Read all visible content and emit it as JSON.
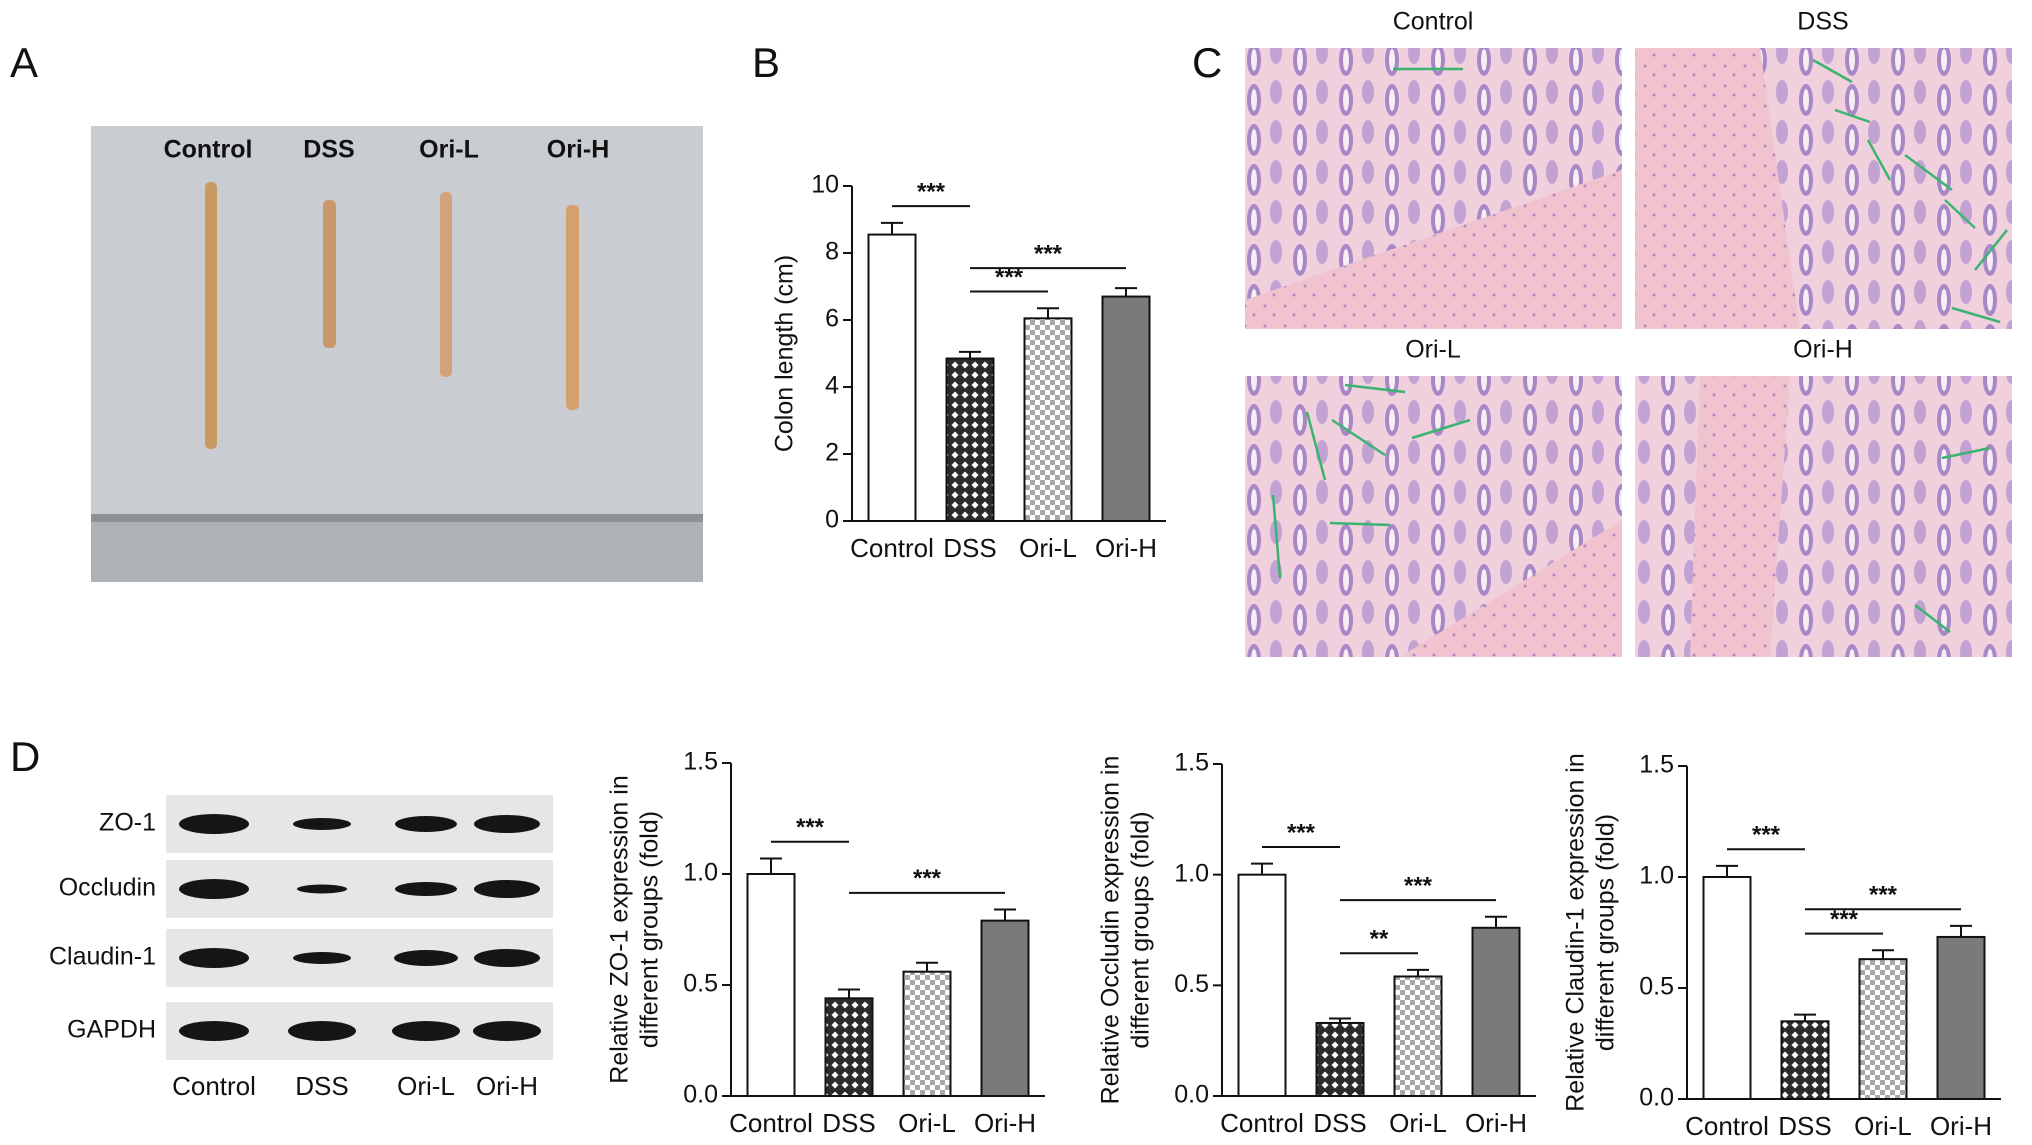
{
  "panels": {
    "A": {
      "label": "A",
      "groups": [
        "Control",
        "DSS",
        "Ori-L",
        "Ori-H"
      ]
    },
    "C": {
      "label": "C",
      "images": [
        "Control",
        "DSS",
        "Ori-L",
        "Ori-H"
      ]
    },
    "D": {
      "label": "D",
      "bands": [
        "ZO-1",
        "Occludin",
        "Claudin-1",
        "GAPDH"
      ],
      "lanes": [
        "Control",
        "DSS",
        "Ori-L",
        "Ori-H"
      ]
    }
  },
  "chart_data": [
    {
      "type": "bar",
      "panel": "B",
      "ylabel": [
        "Colon length (cm)"
      ],
      "categories": [
        "Control",
        "DSS",
        "Ori-L",
        "Ori-H"
      ],
      "values": [
        8.55,
        4.85,
        6.05,
        6.7
      ],
      "errors": [
        0.35,
        0.2,
        0.3,
        0.25
      ],
      "colors": [
        "#ffffff",
        "#2b2b2b",
        "#8a8a8a",
        "#7a7a7a"
      ],
      "patterns": [
        "none",
        "crosshatch",
        "dots",
        "none"
      ],
      "ylim": [
        0,
        10
      ],
      "yticks": [
        0,
        2,
        4,
        6,
        8,
        10
      ],
      "significance": [
        {
          "label": "***",
          "from": 0,
          "to": 1
        },
        {
          "label": "***",
          "from": 1,
          "to": 2
        },
        {
          "label": "***",
          "from": 1,
          "to": 3
        }
      ]
    },
    {
      "type": "bar",
      "ylabel": [
        "Relative ZO-1 expression in",
        "different groups (fold)"
      ],
      "categories": [
        "Control",
        "DSS",
        "Ori-L",
        "Ori-H"
      ],
      "values": [
        1.0,
        0.44,
        0.56,
        0.79
      ],
      "errors": [
        0.07,
        0.04,
        0.04,
        0.05
      ],
      "colors": [
        "#ffffff",
        "#2b2b2b",
        "#8a8a8a",
        "#7a7a7a"
      ],
      "patterns": [
        "none",
        "crosshatch",
        "dots",
        "none"
      ],
      "ylim": [
        0,
        1.5
      ],
      "yticks": [
        {
          "value": 0,
          "label": "0.0"
        },
        0.5,
        {
          "value": 1,
          "label": "1.0"
        },
        1.5
      ],
      "significance": [
        {
          "label": "***",
          "from": 0,
          "to": 1
        },
        {
          "label": "***",
          "from": 1,
          "to": 3
        }
      ]
    },
    {
      "type": "bar",
      "ylabel": [
        "Relative Occludin expression in",
        "different groups (fold)"
      ],
      "categories": [
        "Control",
        "DSS",
        "Ori-L",
        "Ori-H"
      ],
      "values": [
        1.0,
        0.33,
        0.54,
        0.76
      ],
      "errors": [
        0.05,
        0.02,
        0.03,
        0.05
      ],
      "colors": [
        "#ffffff",
        "#2b2b2b",
        "#8a8a8a",
        "#7a7a7a"
      ],
      "patterns": [
        "none",
        "crosshatch",
        "dots",
        "none"
      ],
      "ylim": [
        0,
        1.5
      ],
      "yticks": [
        {
          "value": 0,
          "label": "0.0"
        },
        0.5,
        {
          "value": 1,
          "label": "1.0"
        },
        1.5
      ],
      "significance": [
        {
          "label": "***",
          "from": 0,
          "to": 1
        },
        {
          "label": "**",
          "from": 1,
          "to": 2
        },
        {
          "label": "***",
          "from": 1,
          "to": 3
        }
      ]
    },
    {
      "type": "bar",
      "ylabel": [
        "Relative Claudin-1 expression in",
        "different groups (fold)"
      ],
      "categories": [
        "Control",
        "DSS",
        "Ori-L",
        "Ori-H"
      ],
      "values": [
        1.0,
        0.35,
        0.63,
        0.73
      ],
      "errors": [
        0.05,
        0.03,
        0.04,
        0.05
      ],
      "colors": [
        "#ffffff",
        "#2b2b2b",
        "#8a8a8a",
        "#7a7a7a"
      ],
      "patterns": [
        "none",
        "crosshatch",
        "dots",
        "none"
      ],
      "ylim": [
        0,
        1.5
      ],
      "yticks": [
        {
          "value": 0,
          "label": "0.0"
        },
        0.5,
        {
          "value": 1,
          "label": "1.0"
        },
        1.5
      ],
      "significance": [
        {
          "label": "***",
          "from": 0,
          "to": 1
        },
        {
          "label": "***",
          "from": 1,
          "to": 2
        },
        {
          "label": "***",
          "from": 1,
          "to": 3
        }
      ]
    }
  ]
}
